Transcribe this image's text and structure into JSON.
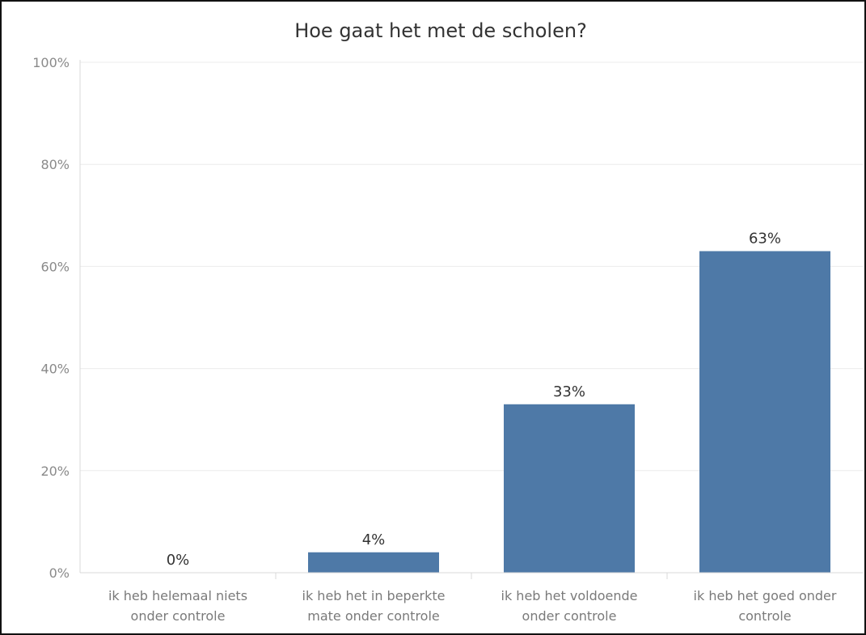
{
  "chart_data": {
    "type": "bar",
    "title": "Hoe gaat het met de scholen?",
    "categories": [
      [
        "ik heb helemaal niets",
        "onder controle"
      ],
      [
        "ik heb het in beperkte",
        "mate onder controle"
      ],
      [
        "ik heb het voldoende",
        "onder controle"
      ],
      [
        "ik heb het goed onder",
        "controle"
      ]
    ],
    "values": [
      0,
      4,
      33,
      63
    ],
    "value_labels": [
      "0%",
      "4%",
      "33%",
      "63%"
    ],
    "yticks": [
      0,
      20,
      40,
      60,
      80,
      100
    ],
    "ytick_labels": [
      "0%",
      "20%",
      "40%",
      "60%",
      "80%",
      "100%"
    ],
    "ylim": [
      0,
      100
    ],
    "xlabel": "",
    "ylabel": "",
    "grid": true,
    "colors": {
      "bar": "#4e79a7",
      "grid": "#ececec",
      "axis": "#d9d9d9"
    }
  }
}
